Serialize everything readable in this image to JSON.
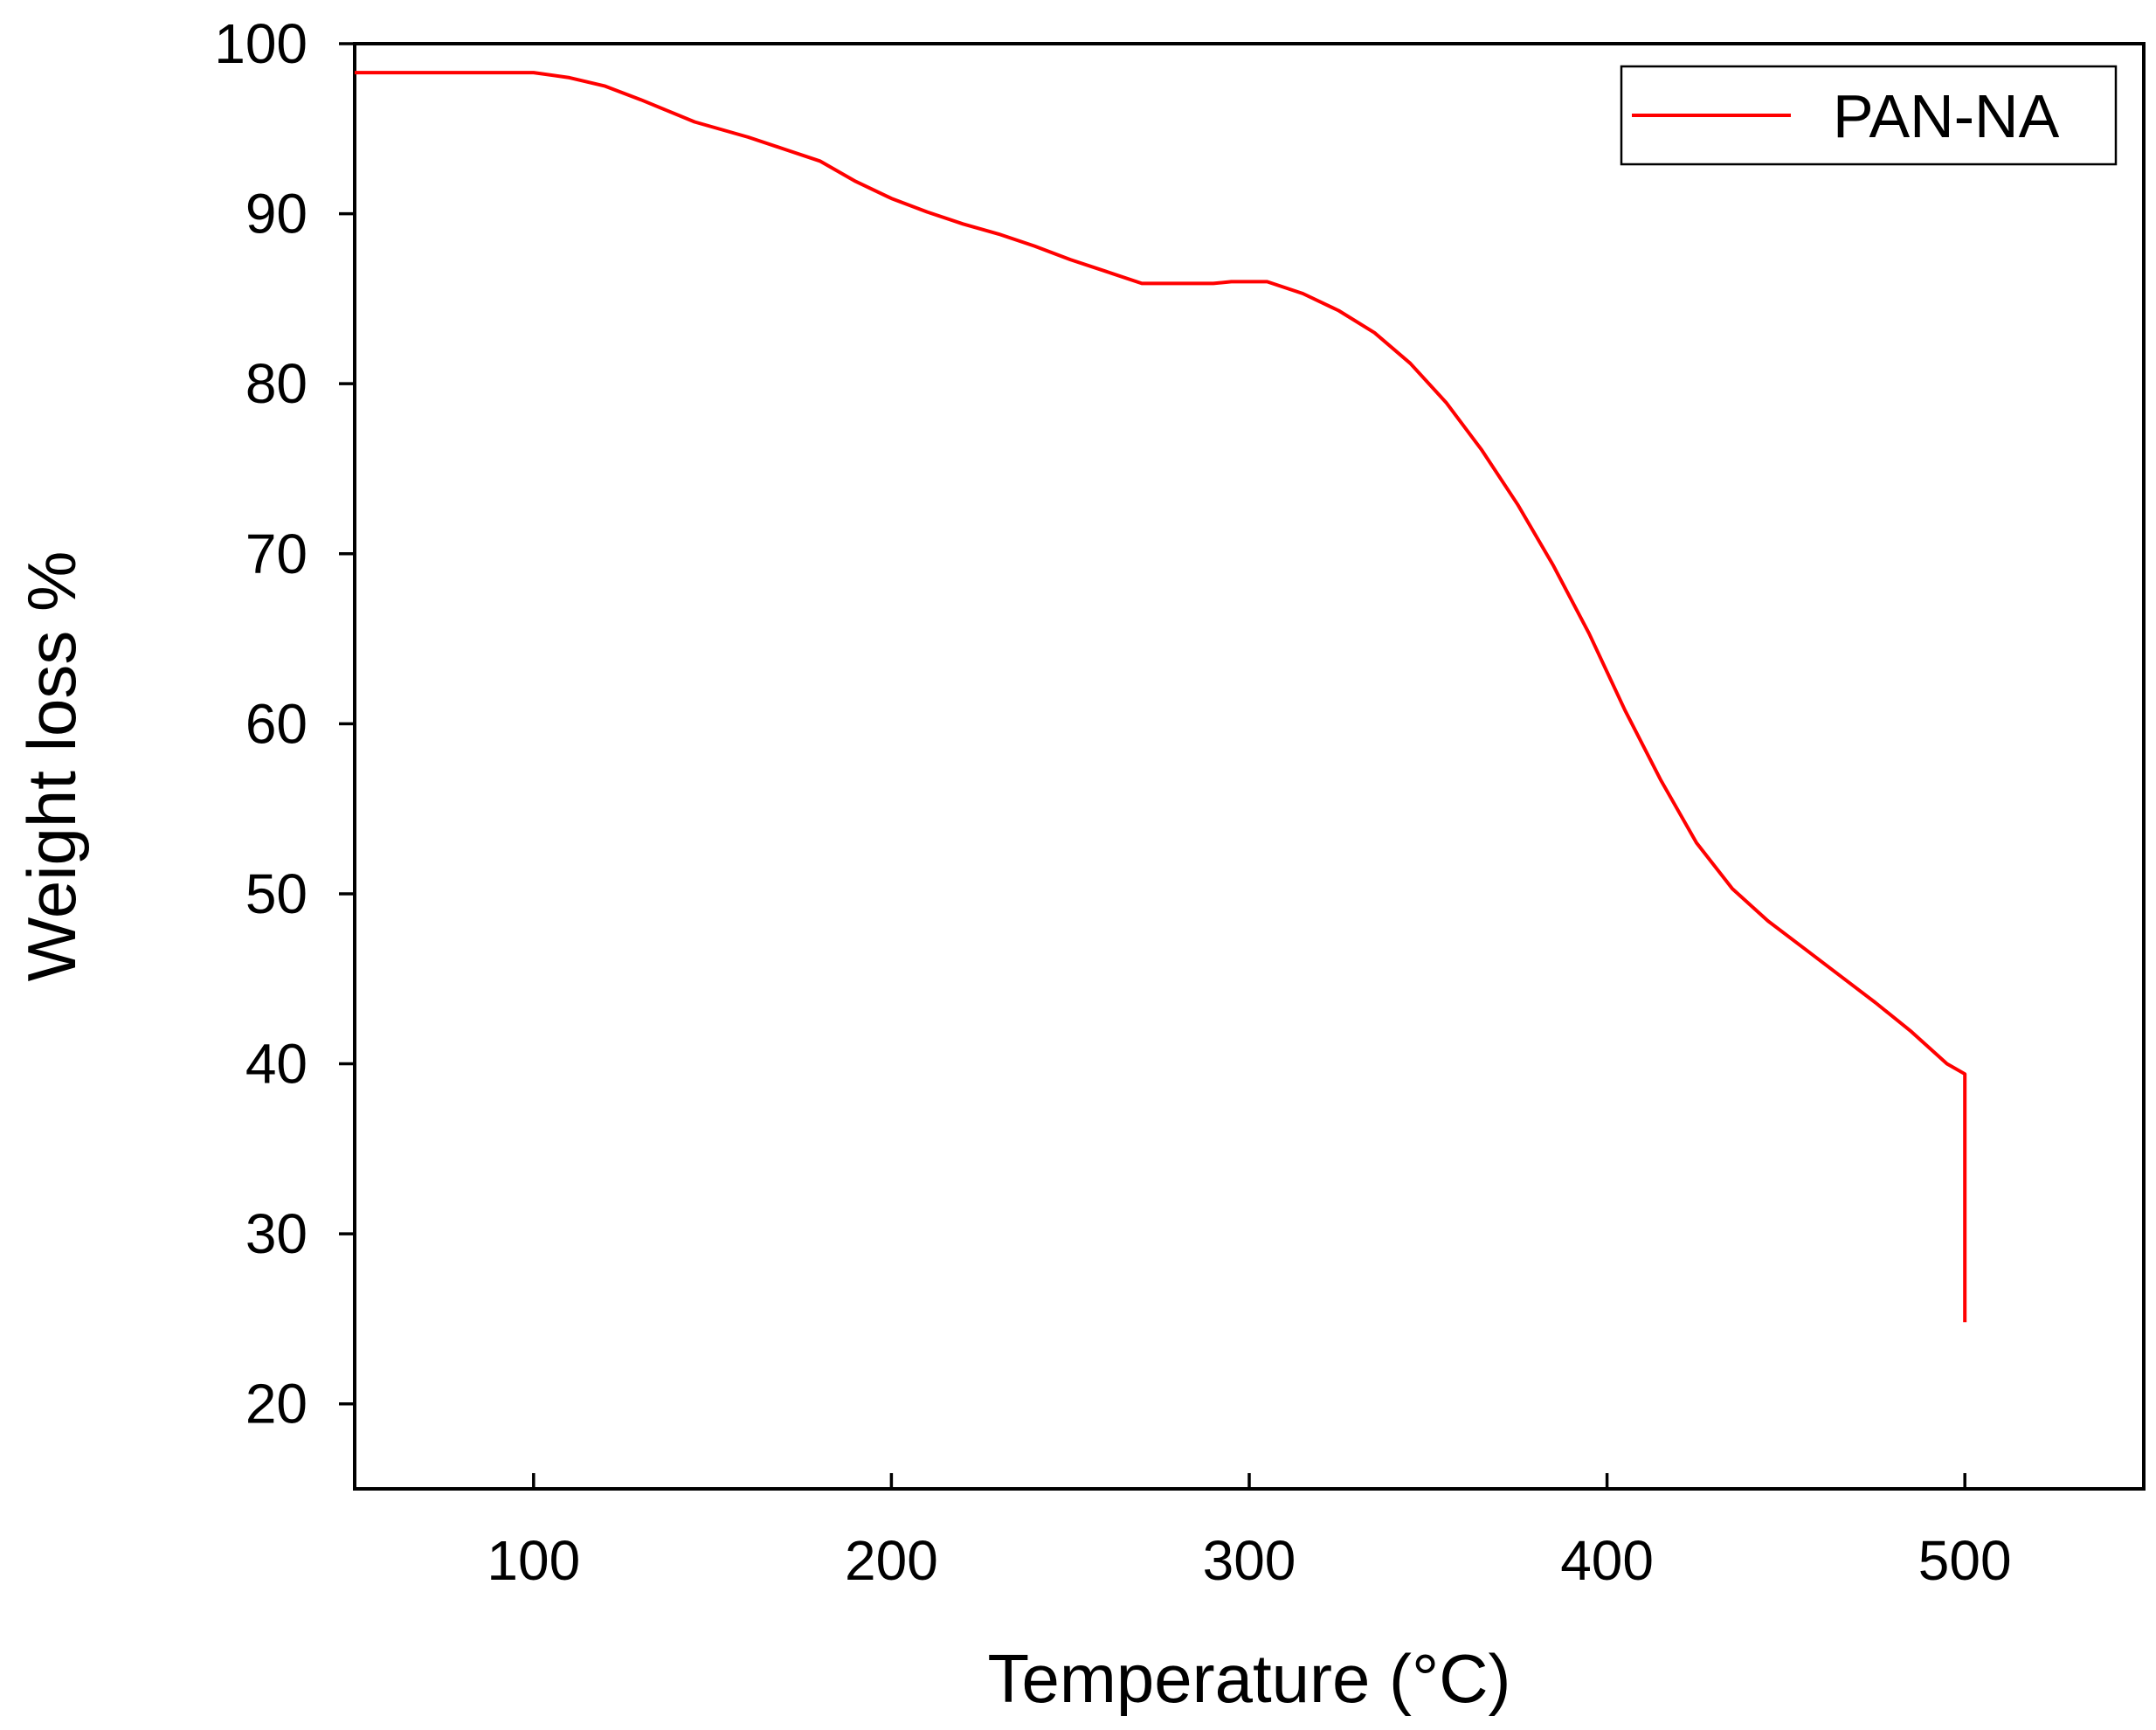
{
  "chart_data": {
    "type": "line",
    "title": "",
    "xlabel": "Temperature (°C)",
    "ylabel": "Weight loss %",
    "xlim": [
      50,
      550
    ],
    "ylim": [
      15,
      100
    ],
    "x_ticks": [
      100,
      200,
      300,
      400,
      500
    ],
    "y_ticks": [
      20,
      30,
      40,
      50,
      60,
      70,
      80,
      90,
      100
    ],
    "grid": false,
    "legend_position": "top-right",
    "series": [
      {
        "name": "PAN-NA",
        "color": "#ff0000",
        "x": [
          50,
          80,
          100,
          110,
          120,
          130,
          145,
          160,
          170,
          180,
          190,
          200,
          210,
          220,
          230,
          240,
          250,
          260,
          270,
          280,
          290,
          295,
          305,
          315,
          325,
          335,
          345,
          355,
          365,
          375,
          385,
          395,
          405,
          415,
          425,
          435,
          445,
          455,
          465,
          475,
          485,
          495,
          500,
          500
        ],
        "y": [
          98.3,
          98.3,
          98.3,
          98.0,
          97.5,
          96.7,
          95.4,
          94.5,
          93.8,
          93.1,
          91.9,
          90.9,
          90.1,
          89.4,
          88.8,
          88.1,
          87.3,
          86.6,
          85.9,
          85.9,
          85.9,
          86.0,
          86.0,
          85.3,
          84.3,
          83.0,
          81.2,
          78.9,
          76.1,
          72.9,
          69.3,
          65.3,
          60.8,
          56.7,
          53.0,
          50.3,
          48.4,
          46.8,
          45.2,
          43.6,
          41.9,
          40.0,
          39.4,
          24.8
        ]
      }
    ]
  }
}
